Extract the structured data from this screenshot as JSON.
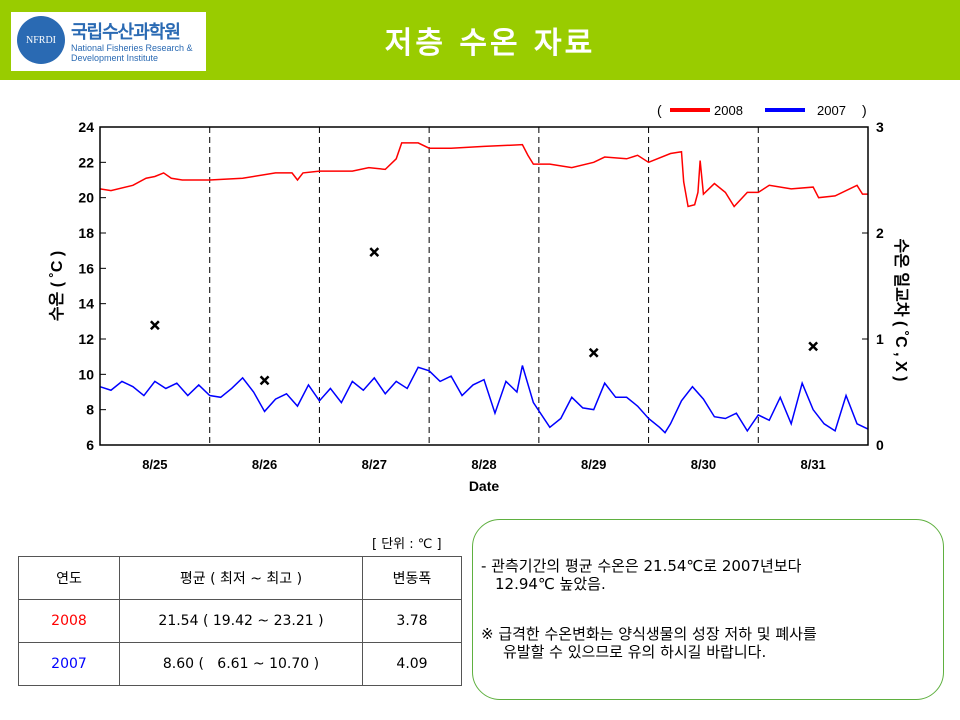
{
  "header": {
    "title": "저층 수온 자료",
    "logo_ko": "국립수산과학원",
    "logo_en1": "National Fisheries Research &",
    "logo_en2": "Development Institute",
    "logo_seal": "NFRDI"
  },
  "chart_data": {
    "type": "line",
    "xlabel": "Date",
    "ylabel": "수온 ( ˚C )",
    "y2label": "수온 일교차 ( ˚C , X )",
    "ylim": [
      6,
      24
    ],
    "y2lim": [
      0,
      3
    ],
    "xlim": [
      0,
      7
    ],
    "yticks": [
      6,
      8,
      10,
      12,
      14,
      16,
      18,
      20,
      22,
      24
    ],
    "y2ticks": [
      0,
      1,
      2,
      3
    ],
    "categories": [
      "8/25",
      "8/26",
      "8/27",
      "8/28",
      "8/29",
      "8/30",
      "8/31"
    ],
    "legend": {
      "open": "(",
      "close": ")",
      "position": "top-right"
    },
    "series": [
      {
        "name": "2008",
        "color": "#ff0000",
        "points": [
          [
            0,
            20.5
          ],
          [
            0.1,
            20.4
          ],
          [
            0.3,
            20.7
          ],
          [
            0.42,
            21.1
          ],
          [
            0.5,
            21.2
          ],
          [
            0.58,
            21.4
          ],
          [
            0.65,
            21.1
          ],
          [
            0.75,
            21.0
          ],
          [
            1.0,
            21.0
          ],
          [
            1.3,
            21.1
          ],
          [
            1.6,
            21.4
          ],
          [
            1.75,
            21.4
          ],
          [
            1.8,
            21.0
          ],
          [
            1.85,
            21.4
          ],
          [
            2.0,
            21.5
          ],
          [
            2.3,
            21.5
          ],
          [
            2.45,
            21.7
          ],
          [
            2.6,
            21.6
          ],
          [
            2.7,
            22.2
          ],
          [
            2.75,
            23.1
          ],
          [
            2.9,
            23.1
          ],
          [
            3.0,
            22.8
          ],
          [
            3.2,
            22.8
          ],
          [
            3.5,
            22.9
          ],
          [
            3.85,
            23.0
          ],
          [
            3.9,
            22.4
          ],
          [
            3.95,
            21.9
          ],
          [
            4.1,
            21.9
          ],
          [
            4.3,
            21.7
          ],
          [
            4.5,
            22.0
          ],
          [
            4.6,
            22.3
          ],
          [
            4.8,
            22.2
          ],
          [
            4.9,
            22.4
          ],
          [
            5.0,
            22.0
          ],
          [
            5.2,
            22.5
          ],
          [
            5.3,
            22.6
          ],
          [
            5.32,
            20.9
          ],
          [
            5.36,
            19.5
          ],
          [
            5.42,
            19.6
          ],
          [
            5.45,
            20.3
          ],
          [
            5.47,
            22.1
          ],
          [
            5.5,
            20.2
          ],
          [
            5.6,
            20.8
          ],
          [
            5.7,
            20.3
          ],
          [
            5.78,
            19.5
          ],
          [
            5.9,
            20.3
          ],
          [
            6.0,
            20.3
          ],
          [
            6.1,
            20.7
          ],
          [
            6.3,
            20.5
          ],
          [
            6.5,
            20.6
          ],
          [
            6.55,
            20.0
          ],
          [
            6.7,
            20.1
          ],
          [
            6.9,
            20.7
          ],
          [
            6.95,
            20.2
          ],
          [
            7.0,
            20.2
          ]
        ]
      },
      {
        "name": "2007",
        "color": "#0000ff",
        "points": [
          [
            0,
            9.3
          ],
          [
            0.1,
            9.1
          ],
          [
            0.2,
            9.6
          ],
          [
            0.3,
            9.3
          ],
          [
            0.4,
            8.8
          ],
          [
            0.5,
            9.6
          ],
          [
            0.6,
            9.2
          ],
          [
            0.7,
            9.5
          ],
          [
            0.8,
            8.8
          ],
          [
            0.9,
            9.4
          ],
          [
            1.0,
            8.8
          ],
          [
            1.1,
            8.7
          ],
          [
            1.2,
            9.2
          ],
          [
            1.3,
            9.8
          ],
          [
            1.4,
            9.0
          ],
          [
            1.5,
            7.9
          ],
          [
            1.6,
            8.6
          ],
          [
            1.7,
            8.9
          ],
          [
            1.8,
            8.2
          ],
          [
            1.9,
            9.4
          ],
          [
            2.0,
            8.5
          ],
          [
            2.1,
            9.2
          ],
          [
            2.2,
            8.4
          ],
          [
            2.3,
            9.6
          ],
          [
            2.4,
            9.1
          ],
          [
            2.5,
            9.8
          ],
          [
            2.6,
            8.9
          ],
          [
            2.7,
            9.6
          ],
          [
            2.8,
            9.2
          ],
          [
            2.9,
            10.4
          ],
          [
            3.0,
            10.2
          ],
          [
            3.1,
            9.6
          ],
          [
            3.2,
            9.9
          ],
          [
            3.3,
            8.8
          ],
          [
            3.4,
            9.4
          ],
          [
            3.5,
            9.7
          ],
          [
            3.6,
            7.8
          ],
          [
            3.7,
            9.6
          ],
          [
            3.8,
            9.0
          ],
          [
            3.85,
            10.5
          ],
          [
            3.95,
            8.4
          ],
          [
            4.1,
            7.0
          ],
          [
            4.2,
            7.5
          ],
          [
            4.3,
            8.7
          ],
          [
            4.4,
            8.1
          ],
          [
            4.5,
            8.0
          ],
          [
            4.6,
            9.5
          ],
          [
            4.7,
            8.7
          ],
          [
            4.8,
            8.7
          ],
          [
            4.9,
            8.2
          ],
          [
            5.0,
            7.5
          ],
          [
            5.1,
            7.0
          ],
          [
            5.15,
            6.7
          ],
          [
            5.2,
            7.2
          ],
          [
            5.3,
            8.5
          ],
          [
            5.4,
            9.3
          ],
          [
            5.5,
            8.6
          ],
          [
            5.6,
            7.6
          ],
          [
            5.7,
            7.5
          ],
          [
            5.8,
            7.8
          ],
          [
            5.9,
            6.8
          ],
          [
            6.0,
            7.7
          ],
          [
            6.1,
            7.4
          ],
          [
            6.2,
            8.7
          ],
          [
            6.3,
            7.2
          ],
          [
            6.4,
            9.5
          ],
          [
            6.5,
            8.0
          ],
          [
            6.6,
            7.2
          ],
          [
            6.7,
            6.8
          ],
          [
            6.8,
            8.8
          ],
          [
            6.9,
            7.2
          ],
          [
            7.0,
            6.9
          ]
        ]
      },
      {
        "name": "daily range",
        "marker": "x",
        "axis": "right",
        "points": [
          [
            0.5,
            1.13
          ],
          [
            1.5,
            0.61
          ],
          [
            2.5,
            1.82
          ],
          [
            4.5,
            0.87
          ],
          [
            6.5,
            0.93
          ]
        ]
      }
    ]
  },
  "table": {
    "unit": "[ 단위 : ℃ ]",
    "headers": [
      "연도",
      "평균 ( 최저 ~ 최고 )",
      "변동폭"
    ],
    "rows": [
      {
        "year": "2008",
        "mean": "21.54 ( 19.42 ~ 23.21 )",
        "range": "3.78",
        "color": "#ff0000"
      },
      {
        "year": "2007",
        "mean": "8.60 (   6.61 ~ 10.70 )",
        "range": "4.09",
        "color": "#0000ff"
      }
    ]
  },
  "note": {
    "line1": "- 관측기간의 평균 수온은 21.54℃로 2007년보다",
    "line2": "12.94℃ 높았음.",
    "line3": "※ 급격한 수온변화는 양식생물의 성장 저하 및 폐사를",
    "line4": "유발할 수 있으므로 유의 하시길 바랍니다."
  }
}
